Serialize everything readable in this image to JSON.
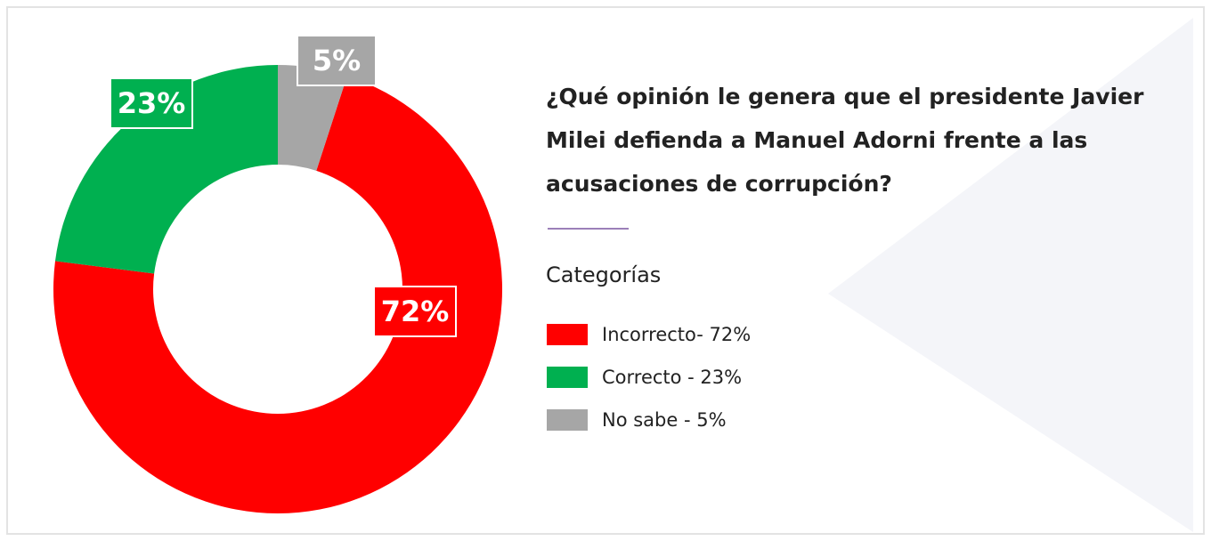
{
  "chart_data": {
    "type": "pie",
    "donut": true,
    "title": "¿Qué opinión le genera que el presidente Javier Milei defienda a Manuel Adorni frente a las acusaciones de corrupción?",
    "legend_title": "Categorías",
    "categories": [
      "Incorrecto- 72%",
      "Correcto - 23%",
      "No sabe - 5%"
    ],
    "values": [
      72,
      23,
      5
    ],
    "value_labels": [
      "72%",
      "23%",
      "5%"
    ],
    "colors": [
      "#ff0000",
      "#00b050",
      "#a6a6a6"
    ]
  }
}
